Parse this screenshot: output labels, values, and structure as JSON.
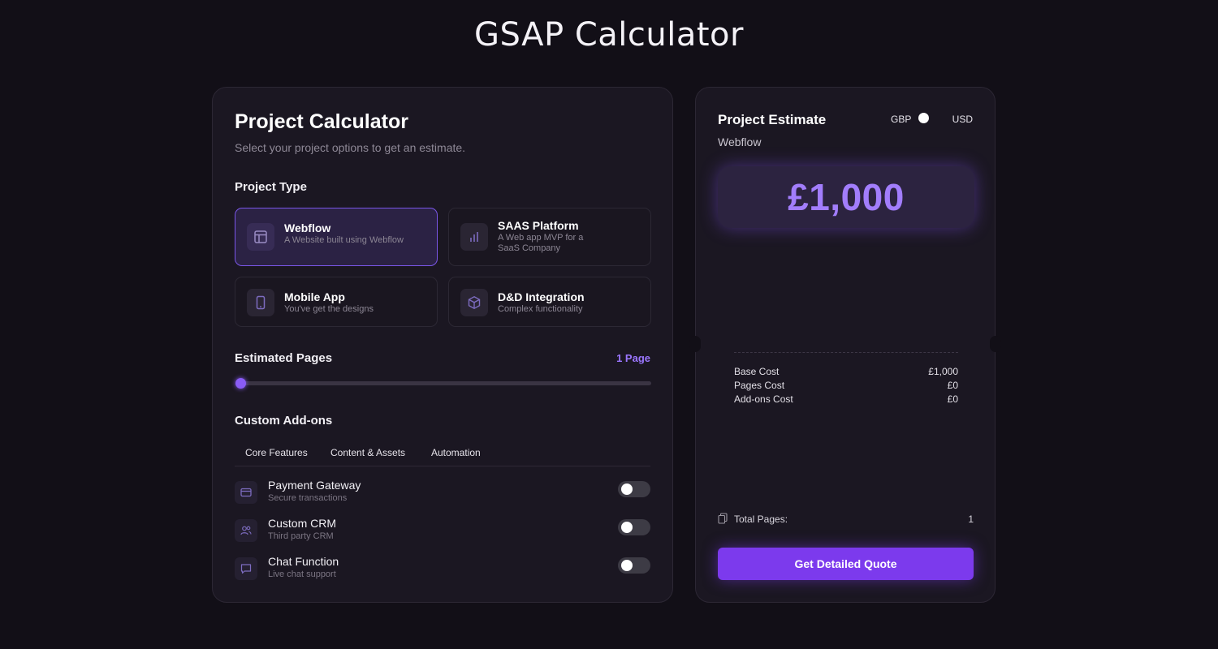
{
  "page": {
    "title": "GSAP Calculator"
  },
  "calculator": {
    "title": "Project Calculator",
    "subtitle": "Select your project options to get an estimate.",
    "project_type_label": "Project Type",
    "project_types": [
      {
        "title": "Webflow",
        "description": "A Website built using Webflow",
        "icon": "layout-icon",
        "selected": true
      },
      {
        "title": "SAAS Platform",
        "description": "A Web app MVP for a SaaS Company",
        "icon": "bar-chart-icon",
        "selected": false
      },
      {
        "title": "Mobile App",
        "description": "You've get the designs",
        "icon": "smartphone-icon",
        "selected": false
      },
      {
        "title": "D&D Integration",
        "description": "Complex functionality",
        "icon": "cube-icon",
        "selected": false
      }
    ],
    "pages_label": "Estimated Pages",
    "pages_value": "1 Page",
    "pages_slider_fraction": 0,
    "addons_label": "Custom Add-ons",
    "addon_tabs": [
      "Core Features",
      "Content & Assets",
      "Automation"
    ],
    "addons": [
      {
        "name": "Payment Gateway",
        "description": "Secure transactions",
        "icon": "credit-card-icon",
        "enabled": false
      },
      {
        "name": "Custom CRM",
        "description": "Third party CRM",
        "icon": "users-icon",
        "enabled": false
      },
      {
        "name": "Chat Function",
        "description": "Live chat support",
        "icon": "chat-bubble-icon",
        "enabled": false
      }
    ]
  },
  "estimate": {
    "title": "Project Estimate",
    "project_type": "Webflow",
    "currency_left": "GBP",
    "currency_right": "USD",
    "price": "£1,000",
    "costs": [
      {
        "label": "Base Cost",
        "value": "£1,000"
      },
      {
        "label": "Pages Cost",
        "value": "£0"
      },
      {
        "label": "Add-ons Cost",
        "value": "£0"
      }
    ],
    "total_pages_label": "Total Pages:",
    "total_pages_value": "1",
    "quote_button": "Get Detailed Quote"
  },
  "colors": {
    "background": "#120f17",
    "card": "#1b1722",
    "accent": "#7c3aed",
    "accent_text": "#9b76ff",
    "price_text": "#a27dfc"
  }
}
